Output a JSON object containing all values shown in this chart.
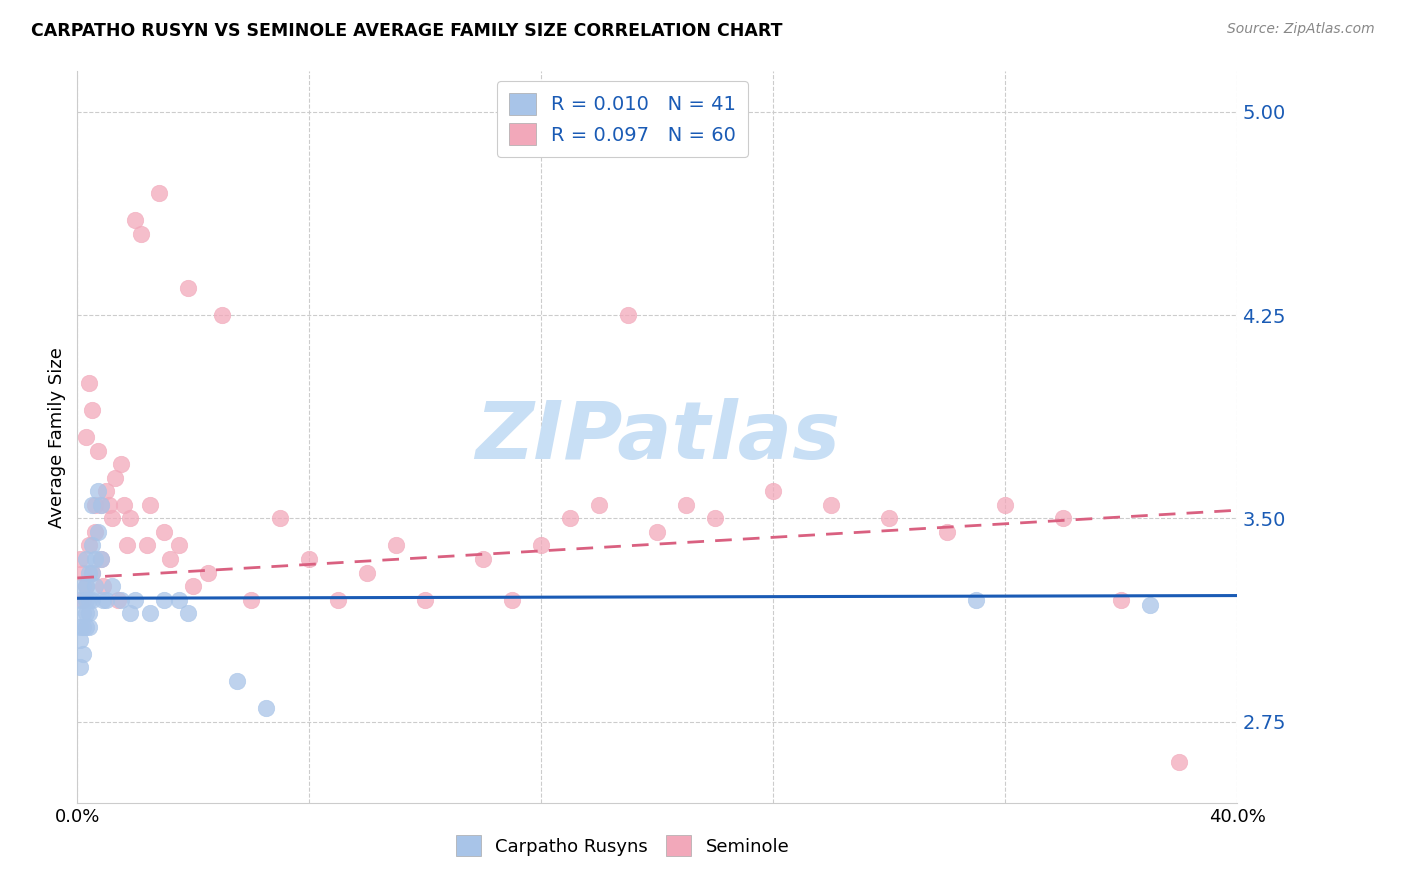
{
  "title": "CARPATHO RUSYN VS SEMINOLE AVERAGE FAMILY SIZE CORRELATION CHART",
  "source": "Source: ZipAtlas.com",
  "ylabel": "Average Family Size",
  "yticks": [
    2.75,
    3.5,
    4.25,
    5.0
  ],
  "xlim": [
    0.0,
    0.4
  ],
  "ylim": [
    2.45,
    5.15
  ],
  "blue_R": "0.010",
  "blue_N": "41",
  "pink_R": "0.097",
  "pink_N": "60",
  "blue_dot_color": "#a8c4e8",
  "pink_dot_color": "#f2a8ba",
  "blue_line_color": "#1a5bb5",
  "pink_line_color": "#d96080",
  "watermark_color": "#c8dff5",
  "blue_line_y0": 3.205,
  "blue_line_y1": 3.215,
  "pink_line_y0": 3.28,
  "pink_line_y1": 3.53,
  "blue_x": [
    0.001,
    0.001,
    0.001,
    0.001,
    0.002,
    0.002,
    0.002,
    0.002,
    0.003,
    0.003,
    0.003,
    0.003,
    0.003,
    0.004,
    0.004,
    0.004,
    0.004,
    0.005,
    0.005,
    0.005,
    0.005,
    0.006,
    0.006,
    0.007,
    0.007,
    0.008,
    0.008,
    0.009,
    0.01,
    0.012,
    0.015,
    0.018,
    0.02,
    0.025,
    0.03,
    0.035,
    0.038,
    0.055,
    0.065,
    0.31,
    0.37
  ],
  "blue_y": [
    3.2,
    3.1,
    3.05,
    2.95,
    3.25,
    3.15,
    3.1,
    3.0,
    3.35,
    3.25,
    3.2,
    3.15,
    3.1,
    3.3,
    3.2,
    3.15,
    3.1,
    3.55,
    3.4,
    3.3,
    3.2,
    3.35,
    3.25,
    3.6,
    3.45,
    3.55,
    3.35,
    3.2,
    3.2,
    3.25,
    3.2,
    3.15,
    3.2,
    3.15,
    3.2,
    3.2,
    3.15,
    2.9,
    2.8,
    3.2,
    3.18
  ],
  "pink_x": [
    0.001,
    0.002,
    0.002,
    0.003,
    0.003,
    0.004,
    0.004,
    0.005,
    0.005,
    0.006,
    0.006,
    0.007,
    0.008,
    0.008,
    0.009,
    0.01,
    0.011,
    0.012,
    0.013,
    0.014,
    0.015,
    0.016,
    0.017,
    0.018,
    0.02,
    0.022,
    0.024,
    0.025,
    0.028,
    0.03,
    0.032,
    0.035,
    0.038,
    0.04,
    0.045,
    0.05,
    0.06,
    0.07,
    0.08,
    0.09,
    0.1,
    0.11,
    0.12,
    0.14,
    0.15,
    0.16,
    0.17,
    0.18,
    0.19,
    0.2,
    0.21,
    0.22,
    0.24,
    0.26,
    0.28,
    0.3,
    0.32,
    0.34,
    0.36,
    0.38
  ],
  "pink_y": [
    3.35,
    3.3,
    3.2,
    3.8,
    3.25,
    4.0,
    3.4,
    3.9,
    3.3,
    3.55,
    3.45,
    3.75,
    3.55,
    3.35,
    3.25,
    3.6,
    3.55,
    3.5,
    3.65,
    3.2,
    3.7,
    3.55,
    3.4,
    3.5,
    4.6,
    4.55,
    3.4,
    3.55,
    4.7,
    3.45,
    3.35,
    3.4,
    4.35,
    3.25,
    3.3,
    4.25,
    3.2,
    3.5,
    3.35,
    3.2,
    3.3,
    3.4,
    3.2,
    3.35,
    3.2,
    3.4,
    3.5,
    3.55,
    4.25,
    3.45,
    3.55,
    3.5,
    3.6,
    3.55,
    3.5,
    3.45,
    3.55,
    3.5,
    3.2,
    2.6
  ]
}
